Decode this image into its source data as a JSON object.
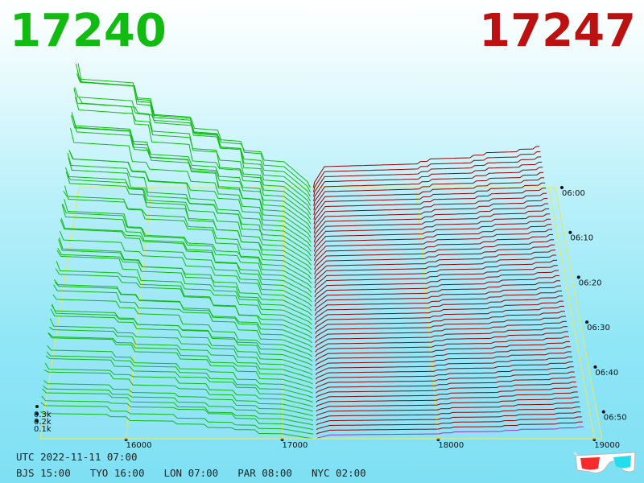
{
  "header": {
    "bid_price": "17240",
    "ask_price": "17247",
    "bid_color": "#11bb11",
    "ask_color": "#bb1111"
  },
  "footer": {
    "utc": "UTC 2022-11-11 07:00",
    "zones": [
      "BJS 15:00",
      "TYO 16:00",
      "LON 07:00",
      "PAR 08:00",
      "NYC 02:00"
    ]
  },
  "icons": {
    "anaglyph": "3d-glasses-icon"
  },
  "chart_data": {
    "type": "area",
    "title": "",
    "xlabel": "",
    "ylabel": "",
    "x_axis": {
      "ticks": [
        16000,
        17000,
        18000,
        19000
      ],
      "tick_labels": [
        "16000",
        "17000",
        "18000",
        "19000"
      ],
      "range": [
        15450,
        19050
      ]
    },
    "time_axis": {
      "ticks": [
        "06:00",
        "06:10",
        "06:20",
        "06:30",
        "06:40",
        "06:50"
      ],
      "range_minutes": [
        0,
        56
      ]
    },
    "z_axis": {
      "ticks": [
        100,
        200,
        300
      ],
      "tick_labels": [
        "0.1k",
        "0.2k",
        "0.3k"
      ]
    },
    "series": [
      {
        "side": "bid",
        "color": "#11bb11"
      },
      {
        "side": "ask",
        "color": "#990000"
      }
    ],
    "grid": true,
    "legend": "none"
  }
}
